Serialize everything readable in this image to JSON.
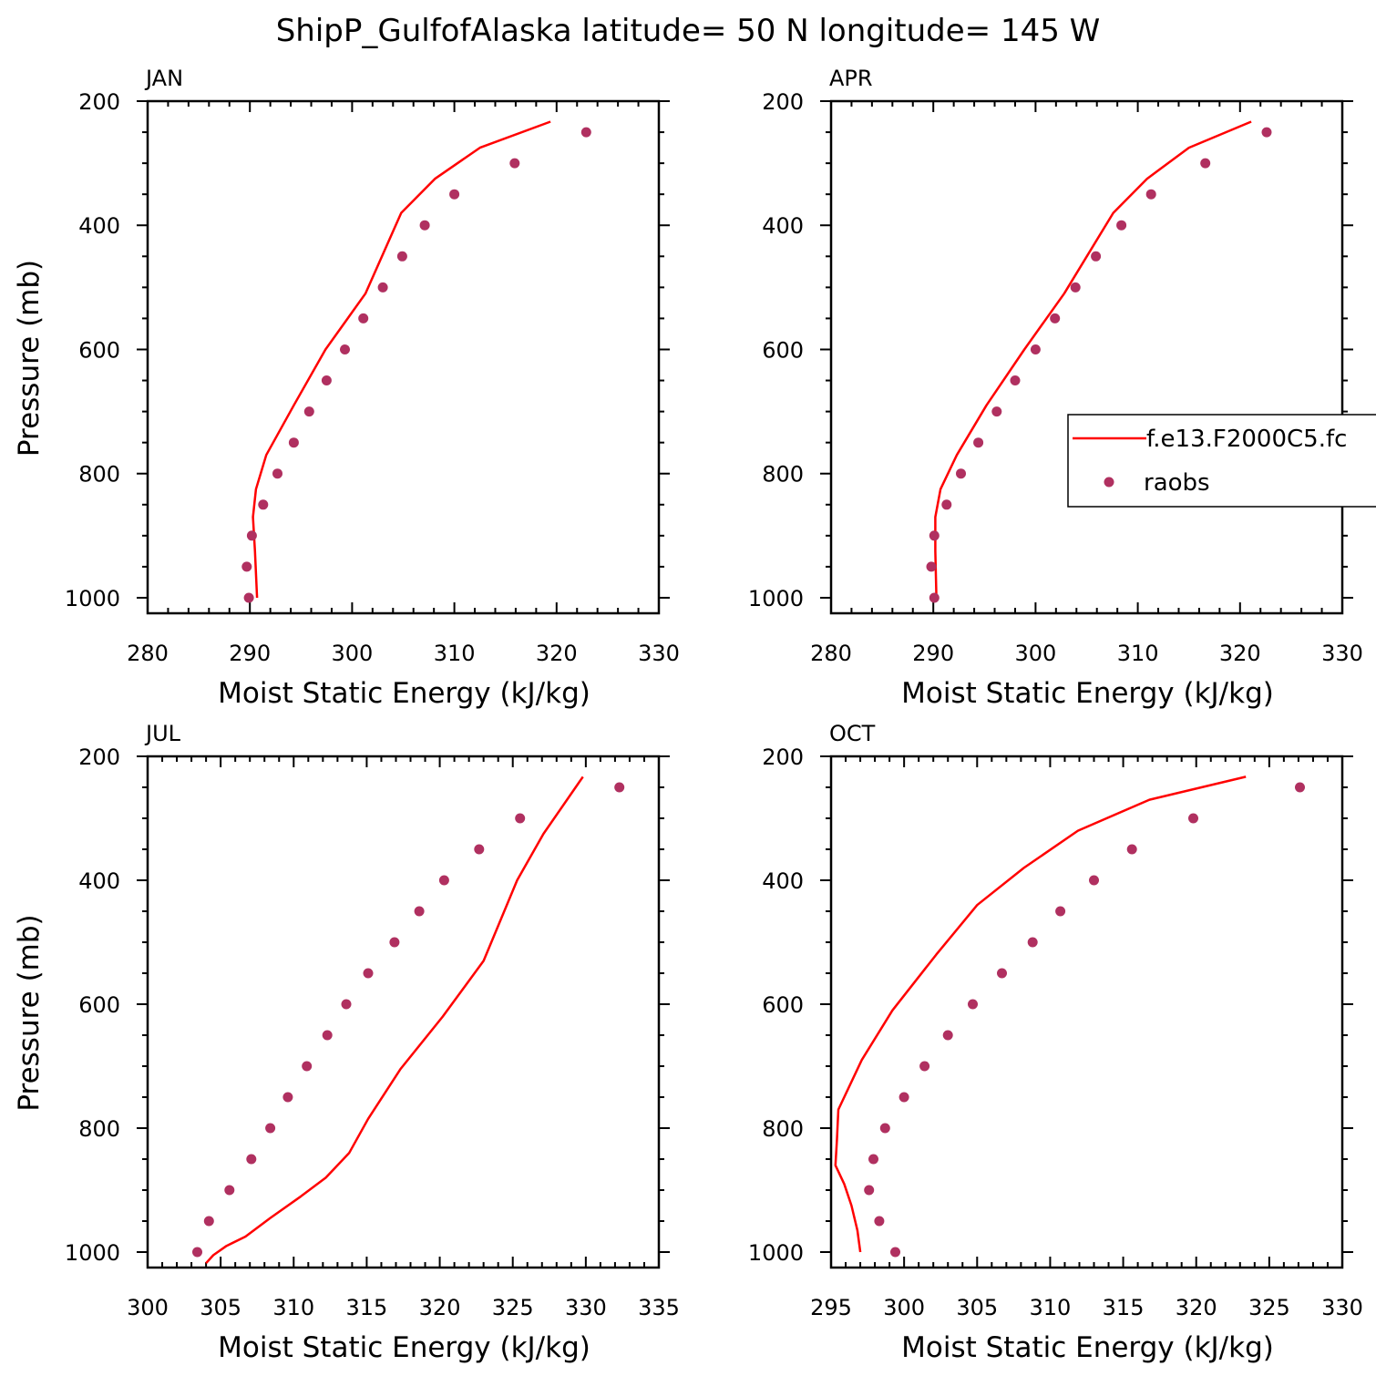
{
  "figure_title": "ShipP_GulfofAlaska  latitude= 50 N longitude= 145 W",
  "legend": {
    "model_label": "f.e13.F2000C5.fc",
    "obs_label": "raobs"
  },
  "colors": {
    "model": "#ff0000",
    "obs": "#b03060",
    "axis": "#000000"
  },
  "chart_data": [
    {
      "type": "scatter",
      "title": "JAN",
      "xlabel": "Moist Static Energy (kJ/kg)",
      "ylabel": "Pressure (mb)",
      "xlim": [
        280,
        330
      ],
      "xticks": [
        280,
        290,
        300,
        310,
        320,
        330
      ],
      "ylim": [
        200,
        1025
      ],
      "yticks": [
        200,
        400,
        600,
        800,
        1000
      ],
      "series": [
        {
          "name": "f.e13.F2000C5.fc",
          "kind": "line",
          "x": [
            290.7,
            290.5,
            290.3,
            290.6,
            291.6,
            294.3,
            297.4,
            301.3,
            304.8,
            308.1,
            312.5,
            319.4
          ],
          "y": [
            1000,
            925,
            870,
            825,
            770,
            690,
            600,
            510,
            380,
            325,
            275,
            233
          ]
        },
        {
          "name": "raobs",
          "kind": "scatter",
          "x": [
            289.9,
            289.7,
            290.2,
            291.3,
            292.7,
            294.3,
            295.8,
            297.5,
            299.3,
            301.1,
            303.0,
            304.9,
            307.1,
            310.0,
            315.9,
            322.9
          ],
          "y": [
            1000,
            950,
            900,
            850,
            800,
            750,
            700,
            650,
            600,
            550,
            500,
            450,
            400,
            350,
            300,
            250
          ]
        }
      ]
    },
    {
      "type": "scatter",
      "title": "APR",
      "xlabel": "Moist Static Energy (kJ/kg)",
      "ylabel": "",
      "xlim": [
        280,
        330
      ],
      "xticks": [
        280,
        290,
        300,
        310,
        320,
        330
      ],
      "ylim": [
        200,
        1025
      ],
      "yticks": [
        200,
        400,
        600,
        800,
        1000
      ],
      "series": [
        {
          "name": "f.e13.F2000C5.fc",
          "kind": "line",
          "x": [
            290.3,
            290.2,
            290.2,
            290.7,
            292.3,
            295.2,
            298.9,
            302.8,
            307.6,
            310.9,
            315.0,
            321.1
          ],
          "y": [
            1000,
            925,
            870,
            825,
            770,
            690,
            600,
            510,
            380,
            325,
            275,
            233
          ]
        },
        {
          "name": "raobs",
          "kind": "scatter",
          "x": [
            290.1,
            289.8,
            290.1,
            291.3,
            292.7,
            294.4,
            296.2,
            298.0,
            300.0,
            301.9,
            303.9,
            305.9,
            308.4,
            311.3,
            316.6,
            322.6
          ],
          "y": [
            1000,
            950,
            900,
            850,
            800,
            750,
            700,
            650,
            600,
            550,
            500,
            450,
            400,
            350,
            300,
            250
          ]
        }
      ]
    },
    {
      "type": "scatter",
      "title": "JUL",
      "xlabel": "Moist Static Energy (kJ/kg)",
      "ylabel": "Pressure (mb)",
      "xlim": [
        300,
        335
      ],
      "xticks": [
        300,
        305,
        310,
        315,
        320,
        325,
        330,
        335
      ],
      "ylim": [
        200,
        1025
      ],
      "yticks": [
        200,
        400,
        600,
        800,
        1000
      ],
      "series": [
        {
          "name": "f.e13.F2000C5.fc",
          "kind": "line",
          "x": [
            304.0,
            304.5,
            305.4,
            306.7,
            308.4,
            310.5,
            312.2,
            313.8,
            315.1,
            317.3,
            320.2,
            323.0,
            325.3,
            327.1,
            329.8
          ],
          "y": [
            1018,
            1005,
            990,
            975,
            945,
            910,
            880,
            840,
            785,
            705,
            620,
            530,
            400,
            325,
            233
          ]
        },
        {
          "name": "raobs",
          "kind": "scatter",
          "x": [
            303.4,
            304.2,
            305.6,
            307.1,
            308.4,
            309.6,
            310.9,
            312.3,
            313.6,
            315.1,
            316.9,
            318.6,
            320.3,
            322.7,
            325.5,
            332.3
          ],
          "y": [
            1000,
            950,
            900,
            850,
            800,
            750,
            700,
            650,
            600,
            550,
            500,
            450,
            400,
            350,
            300,
            250
          ]
        }
      ]
    },
    {
      "type": "scatter",
      "title": "OCT",
      "xlabel": "Moist Static Energy (kJ/kg)",
      "ylabel": "",
      "xlim": [
        295,
        330
      ],
      "xticks": [
        295,
        300,
        305,
        310,
        315,
        320,
        325,
        330
      ],
      "ylim": [
        200,
        1025
      ],
      "yticks": [
        200,
        400,
        600,
        800,
        1000
      ],
      "series": [
        {
          "name": "f.e13.F2000C5.fc",
          "kind": "line",
          "x": [
            297.0,
            296.8,
            296.4,
            295.9,
            295.3,
            295.4,
            295.5,
            297.1,
            299.2,
            302.2,
            305.0,
            308.2,
            311.9,
            316.8,
            323.4
          ],
          "y": [
            1000,
            965,
            925,
            890,
            860,
            820,
            770,
            690,
            610,
            520,
            440,
            380,
            320,
            270,
            233
          ]
        },
        {
          "name": "raobs",
          "kind": "scatter",
          "x": [
            299.4,
            298.3,
            297.6,
            297.9,
            298.7,
            300.0,
            301.4,
            303.0,
            304.7,
            306.7,
            308.8,
            310.7,
            313.0,
            315.6,
            319.8,
            327.1
          ],
          "y": [
            1000,
            950,
            900,
            850,
            800,
            750,
            700,
            650,
            600,
            550,
            500,
            450,
            400,
            350,
            300,
            250
          ]
        }
      ]
    }
  ]
}
